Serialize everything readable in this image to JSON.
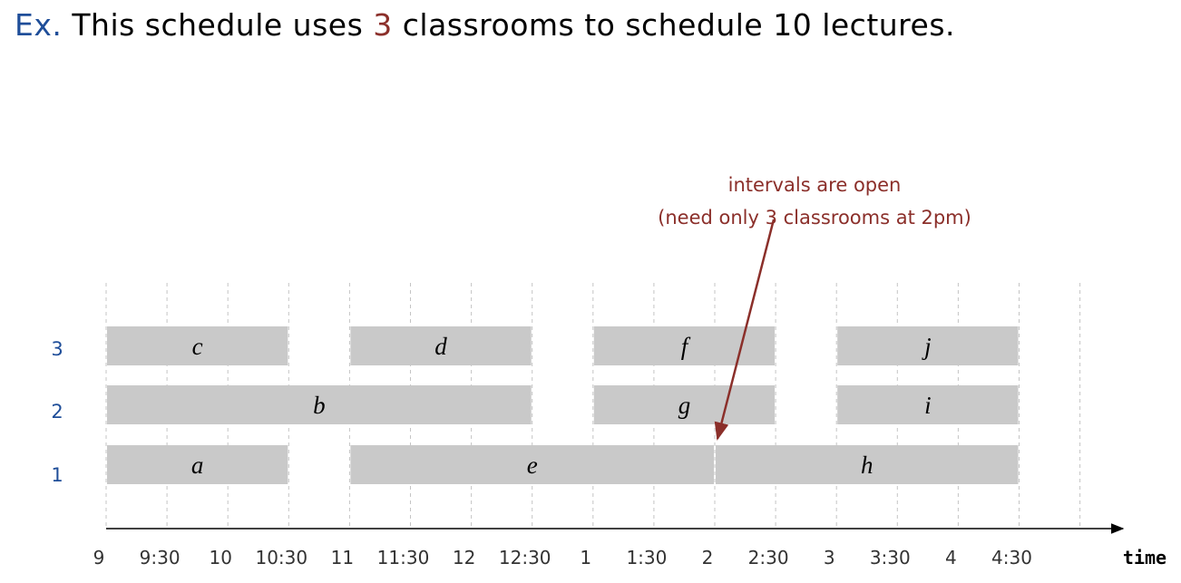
{
  "heading": {
    "ex": "Ex.",
    "part1": " This schedule uses ",
    "classrooms": "3",
    "part2": " classrooms to schedule 10 lectures."
  },
  "annotation": {
    "line1": "intervals are open",
    "line2": "(need only 3 classrooms at 2pm)",
    "points_to_time": "2",
    "points_to_room": 1
  },
  "axis": {
    "label": "time",
    "ticks": [
      "9",
      "9:30",
      "10",
      "10:30",
      "11",
      "11:30",
      "12",
      "12:30",
      "1",
      "1:30",
      "2",
      "2:30",
      "3",
      "3:30",
      "4",
      "4:30"
    ],
    "gridlines": 17
  },
  "rooms": [
    "1",
    "2",
    "3"
  ],
  "lectures": [
    {
      "label": "a",
      "room": 1,
      "start": 0,
      "end": 3
    },
    {
      "label": "e",
      "room": 1,
      "start": 4,
      "end": 10
    },
    {
      "label": "h",
      "room": 1,
      "start": 10,
      "end": 15
    },
    {
      "label": "b",
      "room": 2,
      "start": 0,
      "end": 7
    },
    {
      "label": "g",
      "room": 2,
      "start": 8,
      "end": 11
    },
    {
      "label": "i",
      "room": 2,
      "start": 12,
      "end": 15
    },
    {
      "label": "c",
      "room": 3,
      "start": 0,
      "end": 3
    },
    {
      "label": "d",
      "room": 3,
      "start": 4,
      "end": 7
    },
    {
      "label": "f",
      "room": 3,
      "start": 8,
      "end": 11
    },
    {
      "label": "j",
      "room": 3,
      "start": 12,
      "end": 15
    }
  ],
  "colors": {
    "heading_ex": "#1f4e99",
    "accent": "#8b2f2a",
    "room_label": "#1f4e99",
    "bar_fill": "#c9c9c9",
    "gridline": "#c4c4c4"
  }
}
